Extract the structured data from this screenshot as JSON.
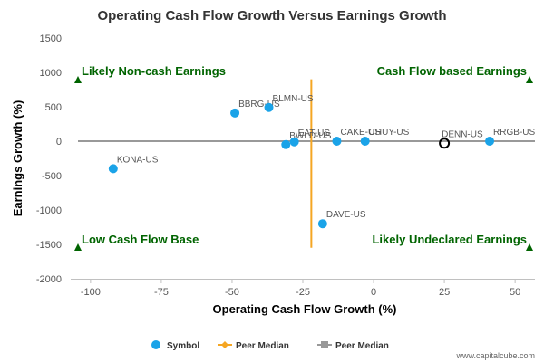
{
  "chart_data": {
    "type": "scatter",
    "title": "Operating Cash Flow Growth Versus Earnings Growth",
    "xlabel": "Operating Cash Flow Growth (%)",
    "ylabel": "Earnings Growth (%)",
    "xlim": [
      -107,
      57
    ],
    "ylim": [
      -2000,
      1500
    ],
    "xticks": [
      -100,
      -75,
      -50,
      -25,
      0,
      25,
      50
    ],
    "yticks": [
      -2000,
      -1500,
      -1000,
      -500,
      0,
      500,
      1000,
      1500
    ],
    "xtick_labels": [
      "-100",
      "-75",
      "-50",
      "-25",
      "0",
      "25",
      "50"
    ],
    "ytick_labels": [
      "-2000",
      "-1500",
      "-1000",
      "-500",
      "0",
      "500",
      "1000",
      "1500"
    ],
    "points": [
      {
        "label": "KONA-US",
        "x": -92,
        "y": -400
      },
      {
        "label": "BBRG-US",
        "x": -49,
        "y": 410
      },
      {
        "label": "BLMN-US",
        "x": -37,
        "y": 490
      },
      {
        "label": "BWLD-US",
        "x": -31,
        "y": -50
      },
      {
        "label": "EAT-US",
        "x": -28,
        "y": -10
      },
      {
        "label": "DAVE-US",
        "x": -18,
        "y": -1200
      },
      {
        "label": "CAKE-US",
        "x": -13,
        "y": 0
      },
      {
        "label": "CHUY-US",
        "x": -3,
        "y": 0
      },
      {
        "label": "RRGB-US",
        "x": 41,
        "y": 0
      }
    ],
    "highlight": {
      "label": "DENN-US",
      "x": 25,
      "y": -30
    },
    "peer_median_x": -22,
    "peer_median_y": 0,
    "peer_median_x_span": [
      -1550,
      900
    ],
    "quadrant_labels": {
      "top_left": "Likely Non-cash Earnings",
      "top_right": "Cash Flow based Earnings",
      "bottom_left": "Low Cash Flow Base",
      "bottom_right": "Likely Undeclared Earnings"
    },
    "legend": {
      "placement": "bottom-center",
      "items": [
        {
          "name": "Symbol",
          "marker": "circle",
          "color": "#1aa3e8"
        },
        {
          "name": "Peer Median",
          "marker": "diamond",
          "color": "#f5a623"
        },
        {
          "name": "Peer Median",
          "marker": "square",
          "color": "#999999"
        }
      ]
    },
    "grid": false,
    "colors": {
      "points": "#1aa3e8",
      "peer_median_x": "#f5a623",
      "peer_median_y": "#999999",
      "quadrant_text": "#006400",
      "highlight_stroke": "#000000"
    }
  },
  "credit": "www.capitalcube.com"
}
